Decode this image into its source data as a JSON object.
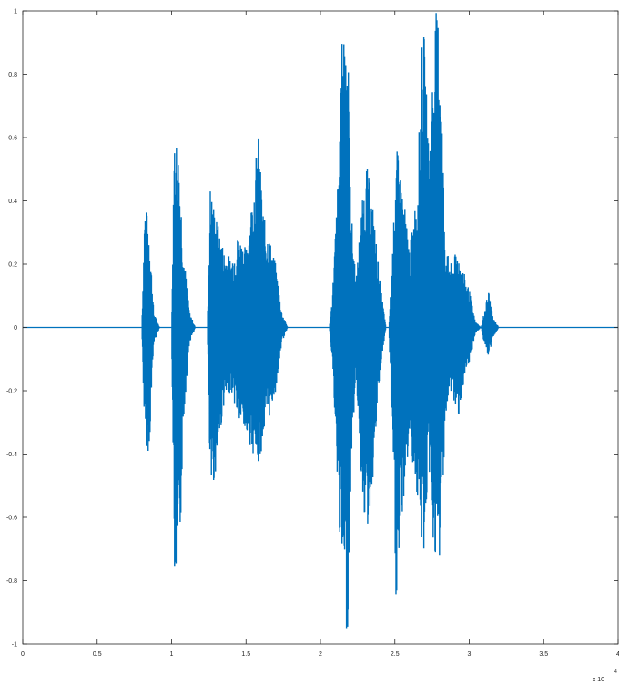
{
  "chart_data": {
    "type": "line",
    "title": "",
    "xlabel": "",
    "ylabel": "",
    "x_exponent": "x 10",
    "x_exponent_power": "4",
    "xlim": [
      0,
      4
    ],
    "ylim": [
      -1,
      1
    ],
    "xticks": [
      0,
      0.5,
      1,
      1.5,
      2,
      2.5,
      3,
      3.5,
      4
    ],
    "xtick_labels": [
      "0",
      "0.5",
      "1",
      "1.5",
      "2",
      "2.5",
      "3",
      "3.5",
      "4"
    ],
    "yticks": [
      1,
      0.8,
      0.6,
      0.4,
      0.2,
      0,
      -0.2,
      -0.4,
      -0.6,
      -0.8,
      -1
    ],
    "ytick_labels": [
      "1",
      "0.8",
      "0.6",
      "0.4",
      "0.2",
      "0",
      "-0.2",
      "-0.4",
      "-0.6",
      "-0.8",
      "-1"
    ],
    "grid": false,
    "line_color": "#0072BD",
    "series": [
      {
        "envelope": [
          {
            "x": 0.0,
            "max": 0.0,
            "min": 0.0
          },
          {
            "x": 0.8,
            "max": 0.0,
            "min": 0.0
          },
          {
            "x": 0.82,
            "max": 0.4,
            "min": -0.37
          },
          {
            "x": 0.85,
            "max": 0.32,
            "min": -0.4
          },
          {
            "x": 0.88,
            "max": 0.05,
            "min": -0.05
          },
          {
            "x": 0.92,
            "max": 0.0,
            "min": 0.0
          },
          {
            "x": 1.0,
            "max": 0.0,
            "min": 0.0
          },
          {
            "x": 1.02,
            "max": 0.65,
            "min": -0.8
          },
          {
            "x": 1.05,
            "max": 0.55,
            "min": -0.82
          },
          {
            "x": 1.08,
            "max": 0.25,
            "min": -0.3
          },
          {
            "x": 1.12,
            "max": 0.05,
            "min": -0.05
          },
          {
            "x": 1.16,
            "max": 0.0,
            "min": 0.0
          },
          {
            "x": 1.24,
            "max": 0.0,
            "min": 0.0
          },
          {
            "x": 1.26,
            "max": 0.45,
            "min": -0.55
          },
          {
            "x": 1.3,
            "max": 0.35,
            "min": -0.45
          },
          {
            "x": 1.35,
            "max": 0.25,
            "min": -0.25
          },
          {
            "x": 1.4,
            "max": 0.22,
            "min": -0.2
          },
          {
            "x": 1.45,
            "max": 0.3,
            "min": -0.3
          },
          {
            "x": 1.5,
            "max": 0.25,
            "min": -0.35
          },
          {
            "x": 1.55,
            "max": 0.45,
            "min": -0.4
          },
          {
            "x": 1.58,
            "max": 0.62,
            "min": -0.45
          },
          {
            "x": 1.62,
            "max": 0.35,
            "min": -0.35
          },
          {
            "x": 1.66,
            "max": 0.28,
            "min": -0.28
          },
          {
            "x": 1.7,
            "max": 0.2,
            "min": -0.2
          },
          {
            "x": 1.74,
            "max": 0.05,
            "min": -0.05
          },
          {
            "x": 1.78,
            "max": 0.0,
            "min": 0.0
          },
          {
            "x": 2.06,
            "max": 0.0,
            "min": 0.0
          },
          {
            "x": 2.08,
            "max": 0.1,
            "min": -0.1
          },
          {
            "x": 2.12,
            "max": 0.5,
            "min": -0.6
          },
          {
            "x": 2.15,
            "max": 1.0,
            "min": -0.8
          },
          {
            "x": 2.18,
            "max": 1.0,
            "min": -1.0
          },
          {
            "x": 2.21,
            "max": 0.35,
            "min": -0.4
          },
          {
            "x": 2.24,
            "max": 0.15,
            "min": -0.15
          },
          {
            "x": 2.27,
            "max": 0.35,
            "min": -0.45
          },
          {
            "x": 2.31,
            "max": 0.52,
            "min": -0.68
          },
          {
            "x": 2.35,
            "max": 0.4,
            "min": -0.5
          },
          {
            "x": 2.4,
            "max": 0.15,
            "min": -0.15
          },
          {
            "x": 2.44,
            "max": 0.0,
            "min": 0.0
          },
          {
            "x": 2.46,
            "max": 0.0,
            "min": 0.0
          },
          {
            "x": 2.49,
            "max": 0.3,
            "min": -0.5
          },
          {
            "x": 2.51,
            "max": 0.58,
            "min": -0.92
          },
          {
            "x": 2.55,
            "max": 0.45,
            "min": -0.6
          },
          {
            "x": 2.6,
            "max": 0.25,
            "min": -0.35
          },
          {
            "x": 2.65,
            "max": 0.45,
            "min": -0.55
          },
          {
            "x": 2.69,
            "max": 1.0,
            "min": -0.75
          },
          {
            "x": 2.73,
            "max": 0.55,
            "min": -0.45
          },
          {
            "x": 2.77,
            "max": 1.0,
            "min": -0.78
          },
          {
            "x": 2.8,
            "max": 1.0,
            "min": -0.75
          },
          {
            "x": 2.84,
            "max": 0.25,
            "min": -0.3
          },
          {
            "x": 2.88,
            "max": 0.2,
            "min": -0.2
          },
          {
            "x": 2.92,
            "max": 0.25,
            "min": -0.3
          },
          {
            "x": 2.96,
            "max": 0.18,
            "min": -0.2
          },
          {
            "x": 3.0,
            "max": 0.12,
            "min": -0.12
          },
          {
            "x": 3.04,
            "max": 0.02,
            "min": -0.02
          },
          {
            "x": 3.08,
            "max": 0.0,
            "min": 0.0
          },
          {
            "x": 3.1,
            "max": 0.05,
            "min": -0.05
          },
          {
            "x": 3.13,
            "max": 0.12,
            "min": -0.1
          },
          {
            "x": 3.16,
            "max": 0.03,
            "min": -0.03
          },
          {
            "x": 3.2,
            "max": 0.0,
            "min": 0.0
          },
          {
            "x": 4.0,
            "max": 0.0,
            "min": 0.0
          }
        ]
      }
    ]
  }
}
